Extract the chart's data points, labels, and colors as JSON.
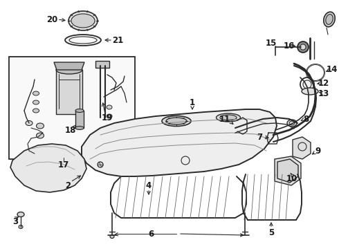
{
  "bg_color": "#ffffff",
  "line_color": "#2a2a2a",
  "label_color": "#1a1a1a",
  "fig_width": 4.9,
  "fig_height": 3.6,
  "dpi": 100
}
